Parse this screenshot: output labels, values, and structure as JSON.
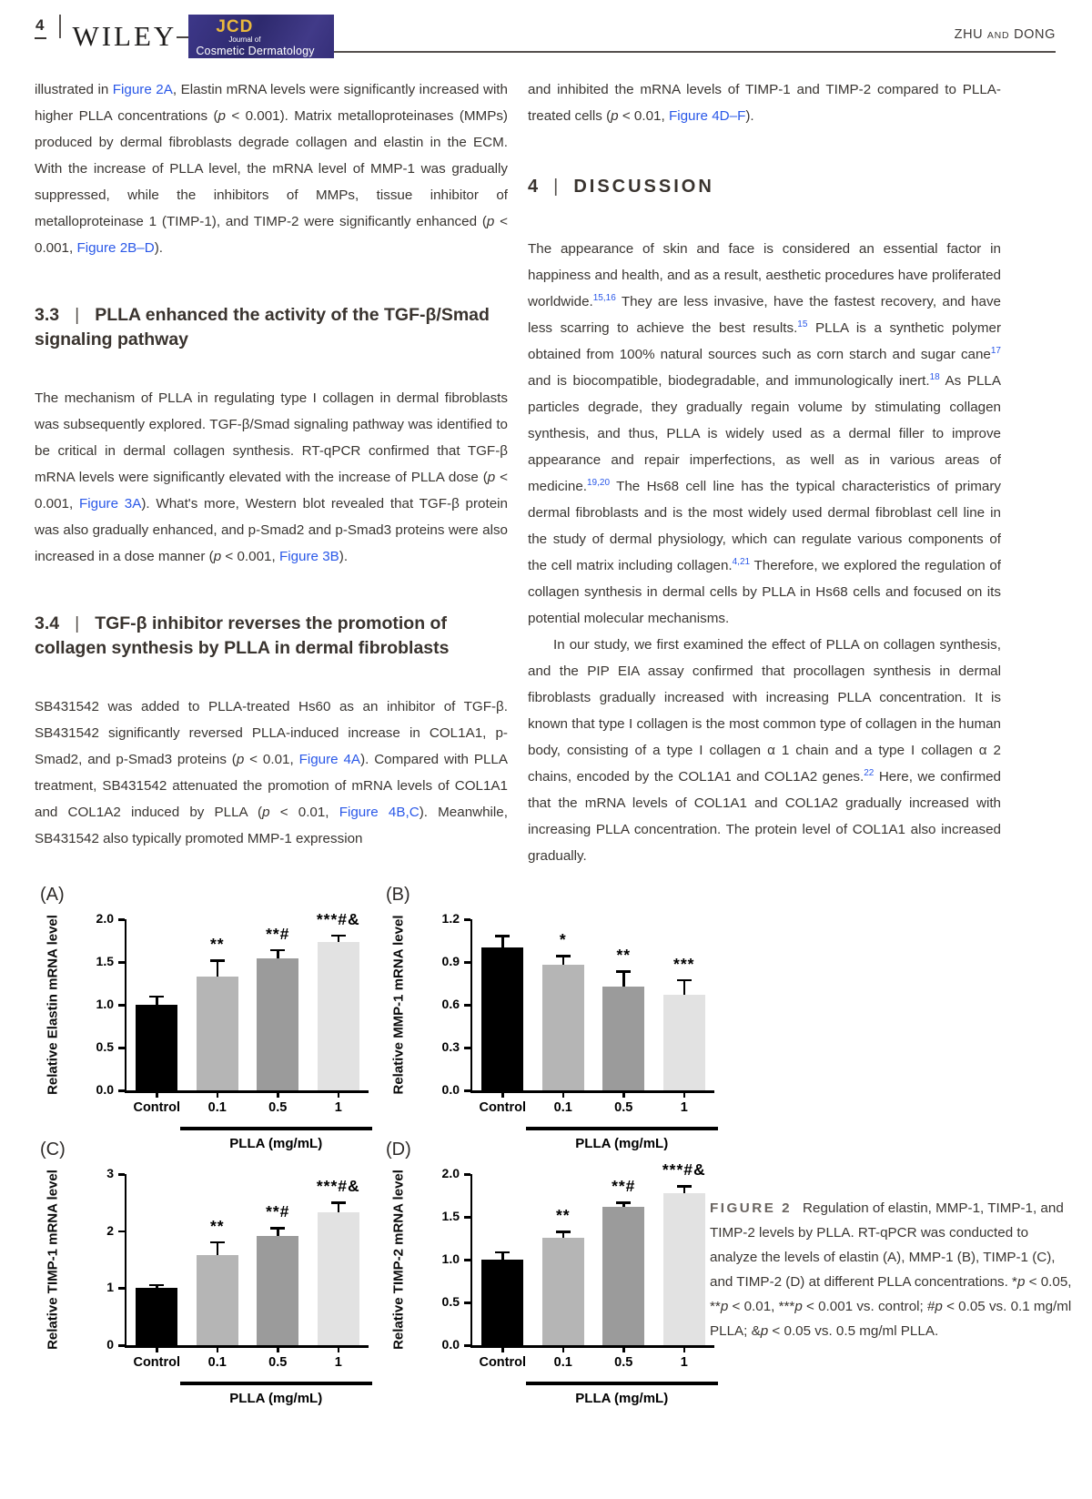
{
  "header": {
    "page_number": "4",
    "publisher": "WILEY",
    "journal_abbr": "JCD",
    "journal_of": "Journal of",
    "journal_name": "Cosmetic Dermatology",
    "running_head_1": "ZHU",
    "running_head_sep": "AND",
    "running_head_2": "DONG"
  },
  "colors": {
    "link_blue": "#2a58e8",
    "logo_navy": "#332e78",
    "logo_gold": "#eab93d",
    "bar_black": "#000000",
    "bar_gray_01": "#b5b5b5",
    "bar_gray_05": "#9b9b9b",
    "bar_gray_1": "#e2e2e2"
  },
  "left_column": {
    "para1": [
      {
        "t": "illustrated in "
      },
      {
        "t": "Figure 2A",
        "s": "link"
      },
      {
        "t": ", Elastin mRNA levels were significantly increased with higher PLLA concentrations ("
      },
      {
        "t": "p",
        "s": "i"
      },
      {
        "t": " < 0.001). Matrix metalloproteinases (MMPs) produced by dermal fibroblasts degrade collagen and elastin in the ECM. With the increase of PLLA level, the mRNA level of MMP-1 was gradually suppressed, while the inhibitors of MMPs, tissue inhibitor of metalloproteinase 1 (TIMP-1), and TIMP-2 were significantly enhanced ("
      },
      {
        "t": "p",
        "s": "i"
      },
      {
        "t": " < 0.001, "
      },
      {
        "t": "Figure 2B–D",
        "s": "link"
      },
      {
        "t": ")."
      }
    ],
    "heading_33": {
      "num": "3.3",
      "sep": "|",
      "title": "PLLA enhanced the activity of the TGF-β/Smad signaling pathway"
    },
    "para2": [
      {
        "t": "The mechanism of PLLA in regulating type I collagen in dermal fibroblasts was subsequently explored. TGF-β/Smad signaling pathway was identified to be critical in dermal collagen synthesis. RT-qPCR confirmed that TGF-β mRNA levels were significantly elevated with the increase of PLLA dose ("
      },
      {
        "t": "p",
        "s": "i"
      },
      {
        "t": " < 0.001, "
      },
      {
        "t": "Figure 3A",
        "s": "link"
      },
      {
        "t": "). What's more, Western blot revealed that TGF-β protein was also gradually enhanced, and p-Smad2 and p-Smad3 proteins were also increased in a dose manner ("
      },
      {
        "t": "p",
        "s": "i"
      },
      {
        "t": " < 0.001, "
      },
      {
        "t": "Figure 3B",
        "s": "link"
      },
      {
        "t": ")."
      }
    ],
    "heading_34": {
      "num": "3.4",
      "sep": "|",
      "title": "TGF-β inhibitor reverses the promotion of collagen synthesis by PLLA in dermal fibroblasts"
    },
    "para3": [
      {
        "t": "SB431542 was added to PLLA-treated Hs60 as an inhibitor of TGF-β. SB431542 significantly reversed PLLA-induced increase in COL1A1, p-Smad2, and p-Smad3 proteins ("
      },
      {
        "t": "p",
        "s": "i"
      },
      {
        "t": " < 0.01, "
      },
      {
        "t": "Figure 4A",
        "s": "link"
      },
      {
        "t": "). Compared with PLLA treatment, SB431542 attenuated the promotion of mRNA levels of COL1A1 and COL1A2 induced by PLLA ("
      },
      {
        "t": "p",
        "s": "i"
      },
      {
        "t": " < 0.01, "
      },
      {
        "t": "Figure 4B,C",
        "s": "link"
      },
      {
        "t": "). Meanwhile, SB431542 also typically promoted MMP-1 expression"
      }
    ]
  },
  "right_column": {
    "para1": [
      {
        "t": "and inhibited the mRNA levels of TIMP-1 and TIMP-2 compared to PLLA-treated cells ("
      },
      {
        "t": "p",
        "s": "i"
      },
      {
        "t": " < 0.01, "
      },
      {
        "t": "Figure 4D–F",
        "s": "link"
      },
      {
        "t": ")."
      }
    ],
    "heading_4": {
      "num": "4",
      "sep": "|",
      "title": "DISCUSSION"
    },
    "para2": [
      {
        "t": "The appearance of skin and face is considered an essential factor in happiness and health, and as a result, aesthetic procedures have proliferated worldwide."
      },
      {
        "t": "15,16",
        "s": "sup"
      },
      {
        "t": " They are less invasive, have the fastest recovery, and have less scarring to achieve the best results."
      },
      {
        "t": "15",
        "s": "sup"
      },
      {
        "t": " PLLA is a synthetic polymer obtained from 100% natural sources such as corn starch and sugar cane"
      },
      {
        "t": "17",
        "s": "sup"
      },
      {
        "t": " and is biocompatible, biodegradable, and immunologically inert."
      },
      {
        "t": "18",
        "s": "sup"
      },
      {
        "t": " As PLLA particles degrade, they gradually regain volume by stimulating collagen synthesis, and thus, PLLA is widely used as a dermal filler to improve appearance and repair imperfections, as well as in various areas of medicine."
      },
      {
        "t": "19,20",
        "s": "sup"
      },
      {
        "t": " The Hs68 cell line has the typical characteristics of primary dermal fibroblasts and is the most widely used dermal fibroblast cell line in the study of dermal physiology, which can regulate various components of the cell matrix including collagen."
      },
      {
        "t": "4,21",
        "s": "sup"
      },
      {
        "t": " Therefore, we explored the regulation of collagen synthesis in dermal cells by PLLA in Hs68 cells and focused on its potential molecular mechanisms."
      }
    ],
    "para3": [
      {
        "t": "In our study, we first examined the effect of PLLA on collagen synthesis, and the PIP EIA assay confirmed that procollagen synthesis in dermal fibroblasts gradually increased with increasing PLLA concentration. It is known that type I collagen is the most common type of collagen in the human body, consisting of a type I collagen α 1 chain and a type I collagen α 2 chains, encoded by the COL1A1 and COL1A2 genes."
      },
      {
        "t": "22",
        "s": "sup"
      },
      {
        "t": " Here, we confirmed that the mRNA levels of COL1A1 and COL1A2 gradually increased with increasing PLLA concentration. The protein level of COL1A1 also increased gradually."
      }
    ]
  },
  "figure": {
    "caption": [
      {
        "t": "FIGURE 2",
        "s": "caplabel"
      },
      {
        "t": "Regulation of elastin, MMP-1, TIMP-1, and TIMP-2 levels by PLLA. RT-qPCR was conducted to analyze the levels of elastin (A), MMP-1 (B), TIMP-1 (C), and TIMP-2 (D) at different PLLA concentrations. *"
      },
      {
        "t": "p",
        "s": "i"
      },
      {
        "t": " < 0.05, **"
      },
      {
        "t": "p",
        "s": "i"
      },
      {
        "t": " < 0.01, ***"
      },
      {
        "t": "p",
        "s": "i"
      },
      {
        "t": " < 0.001 vs. control; #"
      },
      {
        "t": "p",
        "s": "i"
      },
      {
        "t": " < 0.05 vs. 0.1 mg/ml PLLA; &"
      },
      {
        "t": "p",
        "s": "i"
      },
      {
        "t": " < 0.05 vs. 0.5 mg/ml PLLA."
      }
    ]
  },
  "chart_data": [
    {
      "type": "bar",
      "panel": "(A)",
      "ylabel": "Relative Elastin mRNA level",
      "xlabel": "PLLA (mg/mL)",
      "ymax": 2.0,
      "yticks": [
        {
          "v": 0,
          "l": "0.0"
        },
        {
          "v": 0.5,
          "l": "0.5"
        },
        {
          "v": 1.0,
          "l": "1.0"
        },
        {
          "v": 1.5,
          "l": "1.5"
        },
        {
          "v": 2.0,
          "l": "2.0"
        }
      ],
      "categories": [
        "Control",
        "0.1",
        "0.5",
        "1"
      ],
      "values": [
        1.0,
        1.33,
        1.54,
        1.73
      ],
      "errors": [
        0.11,
        0.2,
        0.11,
        0.09
      ],
      "sig": [
        "",
        "**",
        "**#",
        "***#&"
      ],
      "bar_colors": [
        "#000000",
        "#b5b5b5",
        "#9b9b9b",
        "#e2e2e2"
      ]
    },
    {
      "type": "bar",
      "panel": "(B)",
      "ylabel": "Relative MMP-1 mRNA level",
      "xlabel": "PLLA (mg/mL)",
      "ymax": 1.2,
      "yticks": [
        {
          "v": 0,
          "l": "0.0"
        },
        {
          "v": 0.3,
          "l": "0.3"
        },
        {
          "v": 0.6,
          "l": "0.6"
        },
        {
          "v": 0.9,
          "l": "0.9"
        },
        {
          "v": 1.2,
          "l": "1.2"
        }
      ],
      "categories": [
        "Control",
        "0.1",
        "0.5",
        "1"
      ],
      "values": [
        1.0,
        0.88,
        0.73,
        0.67
      ],
      "errors": [
        0.09,
        0.07,
        0.11,
        0.11
      ],
      "sig": [
        "",
        "*",
        "**",
        "***"
      ],
      "bar_colors": [
        "#000000",
        "#b5b5b5",
        "#9b9b9b",
        "#e2e2e2"
      ]
    },
    {
      "type": "bar",
      "panel": "(C)",
      "ylabel": "Relative TIMP-1 mRNA level",
      "xlabel": "PLLA (mg/mL)",
      "ymax": 3.0,
      "yticks": [
        {
          "v": 0,
          "l": "0"
        },
        {
          "v": 1,
          "l": "1"
        },
        {
          "v": 2,
          "l": "2"
        },
        {
          "v": 3,
          "l": "3"
        }
      ],
      "categories": [
        "Control",
        "0.1",
        "0.5",
        "1"
      ],
      "values": [
        1.0,
        1.58,
        1.91,
        2.33
      ],
      "errors": [
        0.07,
        0.24,
        0.16,
        0.19
      ],
      "sig": [
        "",
        "**",
        "**#",
        "***#&"
      ],
      "bar_colors": [
        "#000000",
        "#b5b5b5",
        "#9b9b9b",
        "#e2e2e2"
      ]
    },
    {
      "type": "bar",
      "panel": "(D)",
      "ylabel": "Relative TIMP-2 mRNA level",
      "xlabel": "PLLA (mg/mL)",
      "ymax": 2.0,
      "yticks": [
        {
          "v": 0,
          "l": "0.0"
        },
        {
          "v": 0.5,
          "l": "0.5"
        },
        {
          "v": 1.0,
          "l": "1.0"
        },
        {
          "v": 1.5,
          "l": "1.5"
        },
        {
          "v": 2.0,
          "l": "2.0"
        }
      ],
      "categories": [
        "Control",
        "0.1",
        "0.5",
        "1"
      ],
      "values": [
        1.0,
        1.26,
        1.62,
        1.78
      ],
      "errors": [
        0.1,
        0.08,
        0.06,
        0.09
      ],
      "sig": [
        "",
        "**",
        "**#",
        "***#&"
      ],
      "bar_colors": [
        "#000000",
        "#b5b5b5",
        "#9b9b9b",
        "#e2e2e2"
      ]
    }
  ]
}
